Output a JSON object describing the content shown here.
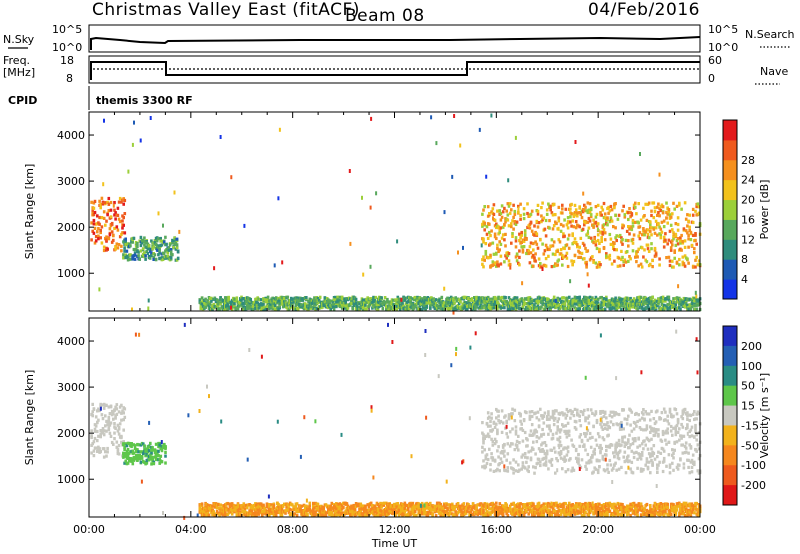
{
  "header": {
    "title": "Christmas Valley East (fitACF)",
    "beam": "Beam 08",
    "date": "04/Feb/2016"
  },
  "top_panels": {
    "nsky_label": "N.Sky",
    "nsearch_label": "N.Search",
    "count_ticks_left": [
      "10^5",
      "10^0"
    ],
    "count_ticks_right": [
      "10^5",
      "10^0"
    ],
    "freq_label_line1": "Freq.",
    "freq_label_line2": "[MHz]",
    "freq_ticks": [
      "18",
      "8"
    ],
    "nave_label": "Nave",
    "nave_ticks": [
      "60",
      "0"
    ],
    "cpid_label": "CPID",
    "cpid_value": "themis 3300 RF"
  },
  "chart_data": [
    {
      "type": "heatmap",
      "parameter": "Power",
      "ylabel": "Slant Range [km]",
      "ylim": [
        180,
        4500
      ],
      "yticks": [
        1000,
        2000,
        3000,
        4000
      ],
      "xlim": [
        "00:00",
        "24:00"
      ],
      "colorbar_label": "Power [dB]",
      "colorbar_ticks": [
        4,
        8,
        12,
        16,
        20,
        24,
        28
      ],
      "colorbar_colors": [
        "#1434e6",
        "#1e5ab4",
        "#2f8c7c",
        "#58a85c",
        "#9ccf3a",
        "#f2c21c",
        "#f5901e",
        "#ef5a1e",
        "#e31a1c"
      ],
      "features": [
        {
          "x_start": 0.05,
          "x_end": 1.4,
          "range_start": 1450,
          "range_end": 2600,
          "level": 26
        },
        {
          "x_start": 1.3,
          "x_end": 3.5,
          "range_start": 1250,
          "range_end": 1750,
          "level": 10
        },
        {
          "x_start": 15.4,
          "x_end": 24.0,
          "range_start": 1100,
          "range_end": 2500,
          "level": 22
        },
        {
          "x_start": 4.3,
          "x_end": 24.0,
          "range_start": 180,
          "range_end": 450,
          "level": 12
        }
      ]
    },
    {
      "type": "heatmap",
      "parameter": "Velocity",
      "ylabel": "Slant Range [km]",
      "xlabel": "Time UT",
      "ylim": [
        180,
        4500
      ],
      "yticks": [
        1000,
        2000,
        3000,
        4000
      ],
      "xticks": [
        "00:00",
        "04:00",
        "08:00",
        "12:00",
        "16:00",
        "20:00",
        "00:00"
      ],
      "colorbar_label": "Velocity [m s⁻¹]",
      "colorbar_ticks": [
        200,
        100,
        50,
        15,
        -15,
        -50,
        -100,
        -200
      ],
      "colorbar_colors": [
        "#1f2fbf",
        "#245fb4",
        "#2a8c84",
        "#5ec64a",
        "#c8c8c0",
        "#f2b21c",
        "#f5871e",
        "#ee5a1e",
        "#e01818"
      ],
      "features": [
        {
          "x_start": 0.05,
          "x_end": 1.4,
          "range_start": 1450,
          "range_end": 2600,
          "velocity": 0
        },
        {
          "x_start": 1.3,
          "x_end": 3.0,
          "range_start": 1300,
          "range_end": 1750,
          "velocity": 40
        },
        {
          "x_start": 15.4,
          "x_end": 24.0,
          "range_start": 1100,
          "range_end": 2500,
          "velocity": 0
        },
        {
          "x_start": 4.3,
          "x_end": 24.0,
          "range_start": 180,
          "range_end": 450,
          "velocity": -50
        }
      ]
    }
  ]
}
